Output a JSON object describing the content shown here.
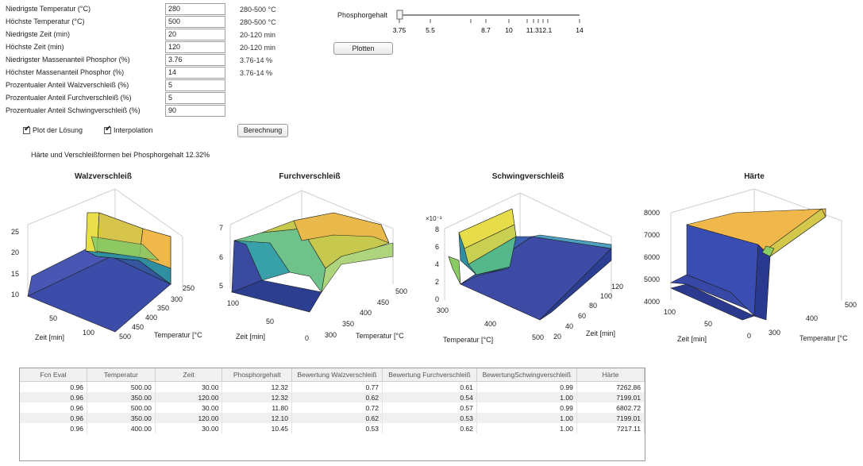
{
  "params": [
    {
      "label": "Niedrigste Temperatur (°C)",
      "value": "280",
      "range": "280-500 °C"
    },
    {
      "label": "Höchste Temperatur (°C)",
      "value": "500",
      "range": "280-500 °C"
    },
    {
      "label": "Niedrigste Zeit (min)",
      "value": "20",
      "range": "20-120 min"
    },
    {
      "label": "Höchste Zeit (min)",
      "value": "120",
      "range": "20-120 min"
    },
    {
      "label": "Niedrigster Massenanteil Phosphor (%)",
      "value": "3.76",
      "range": "3.76-14 %"
    },
    {
      "label": "Höchster Massenanteil Phosphor (%)",
      "value": "14",
      "range": "3.76-14 %"
    },
    {
      "label": "Prozentualer Anteil Walzverschleiß (%)",
      "value": "5",
      "range": ""
    },
    {
      "label": "Prozentualer Anteil Furchverschleiß (%)",
      "value": "5",
      "range": ""
    },
    {
      "label": "Prozentualer Anteil Schwingverschleiß (%)",
      "value": "90",
      "range": ""
    }
  ],
  "checkboxes": {
    "plot": "Plot der Lösung",
    "interpolation": "Interpolation"
  },
  "buttons": {
    "berechnung": "Berechnung",
    "plotten": "Plotten"
  },
  "slider": {
    "label": "Phosphorgehalt",
    "ticks": [
      "3.75",
      "5.5",
      "8.7",
      "10",
      "11.312.1",
      "14"
    ],
    "value": 3.76,
    "min": 3.75,
    "max": 14
  },
  "info": "Härte und Verschleißformen bei Phosphorgehalt 12.32%",
  "plots": {
    "walz": {
      "title": "Walzverschleiß",
      "z_ticks": [
        "25",
        "20",
        "15",
        "10"
      ],
      "x_ticks": [
        "50",
        "100"
      ],
      "x_label": "Zeit [min]",
      "y_ticks": [
        "250",
        "300",
        "350",
        "400",
        "450",
        "500"
      ],
      "y_label": "Temperatur [°C"
    },
    "furch": {
      "title": "Furchverschleiß",
      "z_ticks": [
        "7",
        "6",
        "5"
      ],
      "x_ticks": [
        "100",
        "50",
        "0"
      ],
      "x_label": "Zeit [min]",
      "y_ticks": [
        "300",
        "350",
        "400",
        "450",
        "500"
      ],
      "y_label": "Temperatur [°C"
    },
    "schwing": {
      "title": "Schwingverschleiß",
      "exp": "×10⁻³",
      "z_ticks": [
        "8",
        "6",
        "4",
        "2",
        "0"
      ],
      "x_ticks": [
        "300",
        "400",
        "500"
      ],
      "x_label": "Temperatur [°C]",
      "y_ticks": [
        "20",
        "40",
        "60",
        "80",
        "100",
        "120"
      ],
      "y_label": "Zeit [min]"
    },
    "haerte": {
      "title": "Härte",
      "z_ticks": [
        "8000",
        "7000",
        "6000",
        "5000",
        "4000"
      ],
      "x_ticks": [
        "100",
        "50",
        "0"
      ],
      "x_label": "Zeit [min]",
      "y_ticks": [
        "300",
        "400",
        "500"
      ],
      "y_label": "Temperatur [°C"
    }
  },
  "table": {
    "headers": [
      "Fcn Eval",
      "Temperatur",
      "Zeit",
      "Phosphorgehalt",
      "Bewertung Walzverschleiß",
      "Bewertung Furchverschleiß",
      "BewertungSchwingverschleiß",
      "Härte"
    ],
    "rows": [
      [
        "0.96",
        "500.00",
        "30.00",
        "12.32",
        "0.77",
        "0.61",
        "0.99",
        "7262.86"
      ],
      [
        "0.96",
        "350.00",
        "120.00",
        "12.32",
        "0.62",
        "0.54",
        "1.00",
        "7199.01"
      ],
      [
        "0.96",
        "500.00",
        "30.00",
        "11.80",
        "0.72",
        "0.57",
        "0.99",
        "6802.72"
      ],
      [
        "0.96",
        "350.00",
        "120.00",
        "12.10",
        "0.62",
        "0.53",
        "1.00",
        "7199.01"
      ],
      [
        "0.96",
        "400.00",
        "30.00",
        "10.45",
        "0.53",
        "0.62",
        "1.00",
        "7217.11"
      ]
    ]
  }
}
